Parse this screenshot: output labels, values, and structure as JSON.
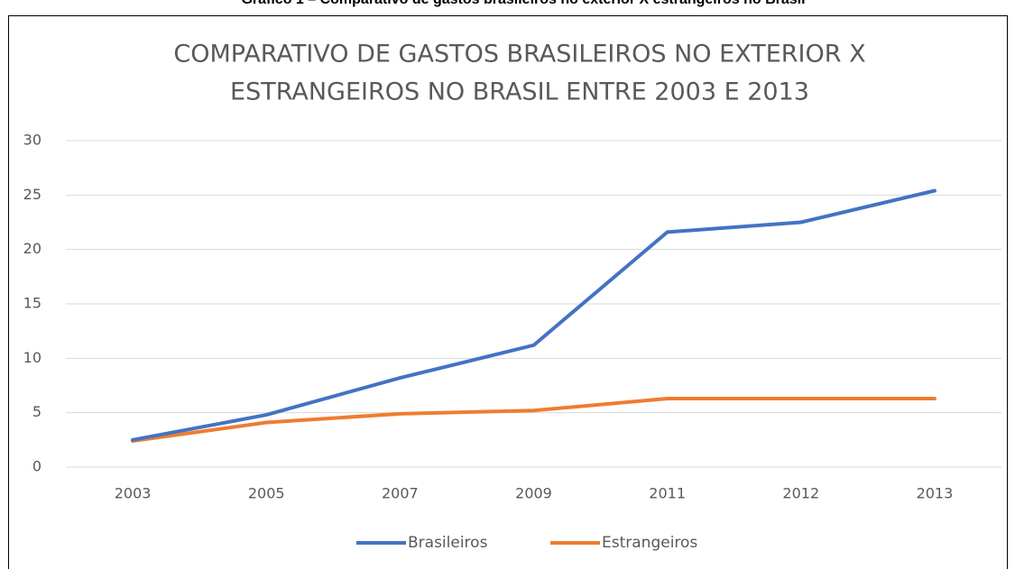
{
  "caption": "Gráfico 1 – Comparativo de gastos brasileiros no exterior X estrangeiros no Brasil",
  "chart_data": {
    "type": "line",
    "title": [
      "COMPARATIVO DE GASTOS BRASILEIROS NO EXTERIOR X",
      "ESTRANGEIROS NO BRASIL ENTRE 2003 E 2013"
    ],
    "categories": [
      "2003",
      "2005",
      "2007",
      "2009",
      "2011",
      "2012",
      "2013"
    ],
    "series": [
      {
        "name": "Brasileiros",
        "color": "#4472c4",
        "values": [
          2.5,
          4.8,
          8.2,
          11.2,
          21.6,
          22.5,
          25.4
        ]
      },
      {
        "name": "Estrangeiros",
        "color": "#ed7d31",
        "values": [
          2.4,
          4.1,
          4.9,
          5.2,
          6.3,
          6.3,
          6.3
        ]
      }
    ],
    "ylim": [
      0,
      30
    ],
    "yticks": [
      0,
      5,
      10,
      15,
      20,
      25,
      30
    ],
    "grid": true,
    "legend": "bottom"
  }
}
